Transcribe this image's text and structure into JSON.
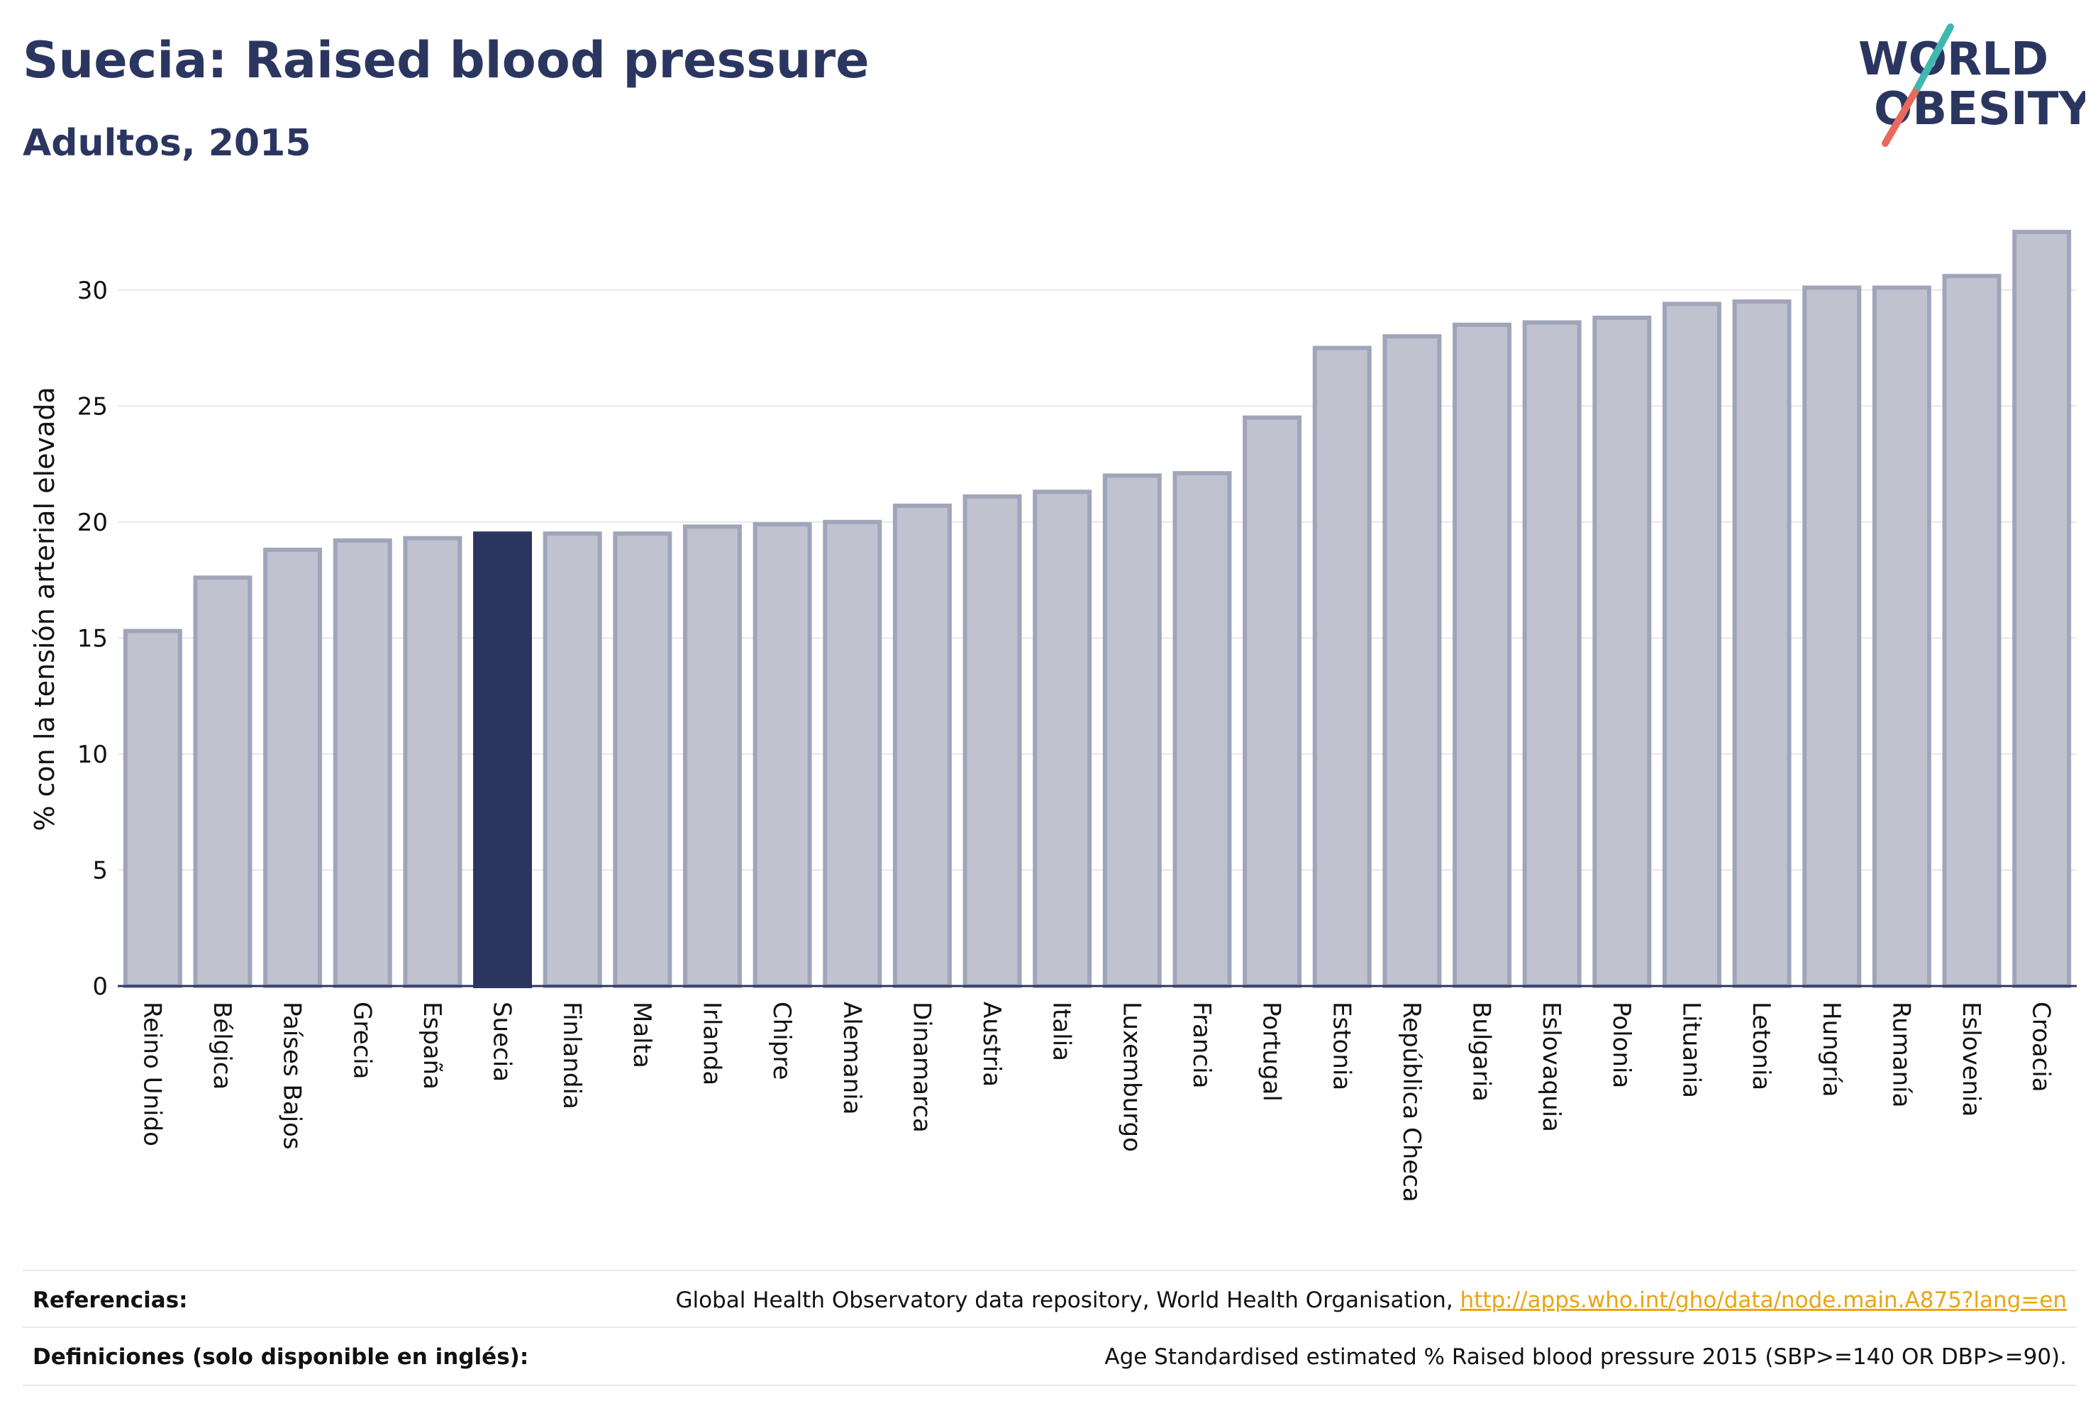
{
  "header": {
    "title": "Suecia: Raised blood pressure",
    "subtitle": "Adultos, 2015"
  },
  "logo": {
    "line1": "WORLD",
    "line2": "OBESITY",
    "colors": {
      "text": "#2b3660",
      "slash_teal": "#3fb8b0",
      "slash_coral": "#e86a5c"
    }
  },
  "chart_data": {
    "type": "bar",
    "title": "Suecia: Raised blood pressure",
    "subtitle": "Adultos, 2015",
    "xlabel": "",
    "ylabel": "% con la tensión arterial elevada",
    "ylim": [
      0,
      32.5
    ],
    "yticks": [
      0,
      5,
      10,
      15,
      20,
      25,
      30
    ],
    "grid": true,
    "highlight": "Suecia",
    "colors": {
      "bar": "#c0c3cf",
      "bar_border": "#a0a5b9",
      "highlight": "#2b3660",
      "grid": "#e6e7ec",
      "axis": "#2b3660"
    },
    "categories": [
      "Reino Unido",
      "Bélgica",
      "Países Bajos",
      "Grecia",
      "España",
      "Suecia",
      "Finlandia",
      "Malta",
      "Irlanda",
      "Chipre",
      "Alemania",
      "Dinamarca",
      "Austria",
      "Italia",
      "Luxemburgo",
      "Francia",
      "Portugal",
      "Estonia",
      "República Checa",
      "Bulgaria",
      "Eslovaquia",
      "Polonia",
      "Lituania",
      "Letonia",
      "Hungría",
      "Rumanía",
      "Eslovenia",
      "Croacia"
    ],
    "values": [
      15.3,
      17.6,
      18.8,
      19.2,
      19.3,
      19.5,
      19.5,
      19.5,
      19.8,
      19.9,
      20.0,
      20.7,
      21.1,
      21.3,
      22.0,
      22.1,
      24.5,
      27.5,
      28.0,
      28.5,
      28.6,
      28.8,
      29.4,
      29.5,
      30.1,
      30.1,
      30.6,
      32.5
    ]
  },
  "footer": {
    "references_label": "Referencias:",
    "references_text": "Global Health Observatory data repository, World Health Organisation, ",
    "references_link": "http://apps.who.int/gho/data/node.main.A875?lang=en",
    "definitions_label": "Definiciones (solo disponible en inglés):",
    "definitions_text": "Age Standardised estimated % Raised blood pressure 2015 (SBP>=140 OR DBP>=90)."
  }
}
